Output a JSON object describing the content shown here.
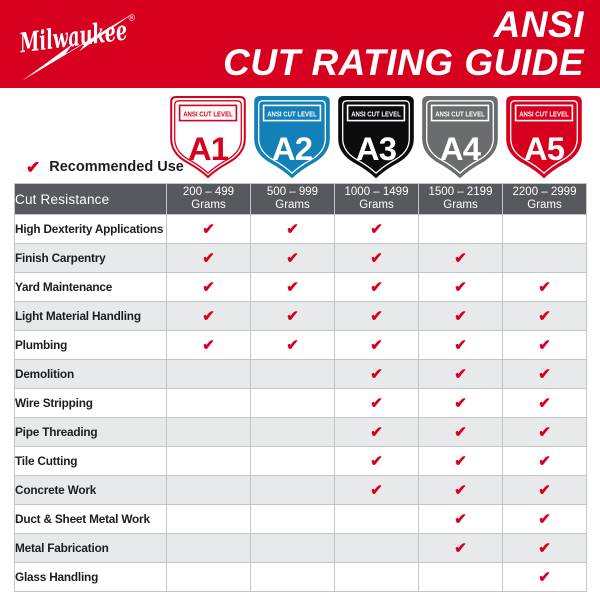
{
  "header": {
    "brand": "Milwaukee",
    "reg_mark": "®",
    "title_line1": "ANSI",
    "title_line2": "CUT RATING GUIDE"
  },
  "colors": {
    "red": "#d7001f",
    "header_gray": "#58595c",
    "row_alt": "#e8e9ea",
    "border": "#c3c4c6",
    "text_dark": "#1d1d1f",
    "blue": "#1480b8",
    "black": "#0c0c0e",
    "gray": "#6b6c6e",
    "white": "#ffffff"
  },
  "levels": [
    {
      "label": "ANSI CUT LEVEL",
      "code": "A1",
      "fill": "#ffffff",
      "accent": "#d7001f",
      "outline": "#d7001f"
    },
    {
      "label": "ANSI CUT LEVEL",
      "code": "A2",
      "fill": "#1480b8",
      "accent": "#ffffff",
      "outline": "#1480b8"
    },
    {
      "label": "ANSI CUT LEVEL",
      "code": "A3",
      "fill": "#0c0c0e",
      "accent": "#ffffff",
      "outline": "#0c0c0e"
    },
    {
      "label": "ANSI CUT LEVEL",
      "code": "A4",
      "fill": "#6b6c6e",
      "accent": "#ffffff",
      "outline": "#6b6c6e"
    },
    {
      "label": "ANSI CUT LEVEL",
      "code": "A5",
      "fill": "#d7001f",
      "accent": "#ffffff",
      "outline": "#d7001f"
    }
  ],
  "legend": {
    "recommended_label": "Recommended Use",
    "check_glyph": "✔"
  },
  "chart_data": {
    "type": "table",
    "title": "ANSI CUT RATING GUIDE",
    "corner_header": "Cut Resistance",
    "column_groups": [
      "A1",
      "A2",
      "A3",
      "A4",
      "A5"
    ],
    "columns": [
      {
        "range": "200 – 499",
        "unit": "Grams"
      },
      {
        "range": "500 – 999",
        "unit": "Grams"
      },
      {
        "range": "1000 – 1499",
        "unit": "Grams"
      },
      {
        "range": "1500 – 2199",
        "unit": "Grams"
      },
      {
        "range": "2200 – 2999",
        "unit": "Grams"
      }
    ],
    "rows": [
      {
        "label": "High Dexterity Applications",
        "checks": [
          true,
          true,
          true,
          false,
          false
        ]
      },
      {
        "label": "Finish Carpentry",
        "checks": [
          true,
          true,
          true,
          true,
          false
        ]
      },
      {
        "label": "Yard Maintenance",
        "checks": [
          true,
          true,
          true,
          true,
          true
        ]
      },
      {
        "label": "Light Material Handling",
        "checks": [
          true,
          true,
          true,
          true,
          true
        ]
      },
      {
        "label": "Plumbing",
        "checks": [
          true,
          true,
          true,
          true,
          true
        ]
      },
      {
        "label": "Demolition",
        "checks": [
          false,
          false,
          true,
          true,
          true
        ]
      },
      {
        "label": "Wire Stripping",
        "checks": [
          false,
          false,
          true,
          true,
          true
        ]
      },
      {
        "label": "Pipe Threading",
        "checks": [
          false,
          false,
          true,
          true,
          true
        ]
      },
      {
        "label": "Tile Cutting",
        "checks": [
          false,
          false,
          true,
          true,
          true
        ]
      },
      {
        "label": "Concrete Work",
        "checks": [
          false,
          false,
          true,
          true,
          true
        ]
      },
      {
        "label": "Duct & Sheet Metal Work",
        "checks": [
          false,
          false,
          false,
          true,
          true
        ]
      },
      {
        "label": "Metal Fabrication",
        "checks": [
          false,
          false,
          false,
          true,
          true
        ]
      },
      {
        "label": "Glass Handling",
        "checks": [
          false,
          false,
          false,
          false,
          true
        ]
      }
    ]
  }
}
